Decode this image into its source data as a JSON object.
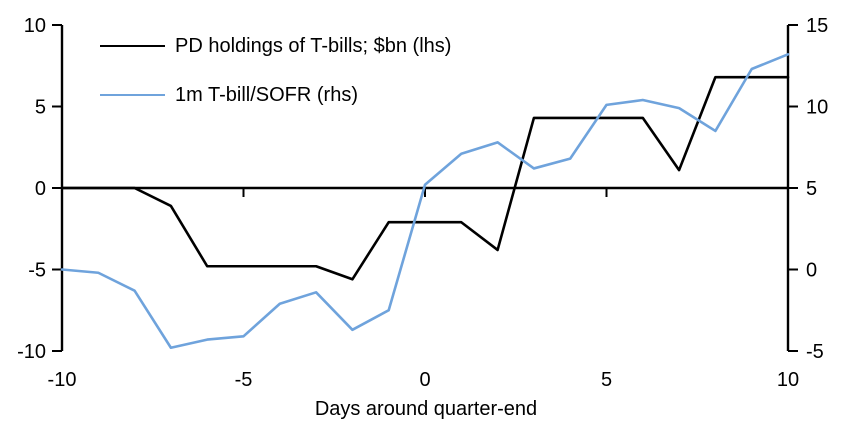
{
  "chart_data": {
    "type": "line",
    "title": "",
    "xlabel": "Days around quarter-end",
    "ylabel_left": "",
    "ylabel_right": "",
    "grid": false,
    "legend_position": "top-left",
    "x": [
      -10,
      -9,
      -8,
      -7,
      -6,
      -5,
      -4,
      -3,
      -2,
      -1,
      0,
      1,
      2,
      3,
      4,
      5,
      6,
      7,
      8,
      9,
      10
    ],
    "x_ticks": [
      -10,
      -5,
      0,
      5,
      10
    ],
    "left_axis": {
      "min": -10,
      "max": 10,
      "ticks": [
        10,
        5,
        0,
        -5,
        -10
      ]
    },
    "right_axis": {
      "min": -5,
      "max": 15,
      "ticks": [
        15,
        10,
        5,
        0,
        -5
      ]
    },
    "series": [
      {
        "name": "PD holdings of T-bills; $bn (lhs)",
        "axis": "left",
        "color": "#000000",
        "values": [
          0,
          0,
          0,
          -1.1,
          -4.8,
          -4.8,
          -4.8,
          -4.8,
          -5.6,
          -2.1,
          -2.1,
          -2.1,
          -3.8,
          4.3,
          4.3,
          4.3,
          4.3,
          1.1,
          6.8,
          6.8,
          6.8
        ]
      },
      {
        "name": "1m T-bill/SOFR (rhs)",
        "axis": "right",
        "color": "#6FA3DC",
        "values": [
          0,
          -0.2,
          -1.3,
          -4.8,
          -4.3,
          -4.1,
          -2.1,
          -1.4,
          -3.7,
          -2.5,
          5.2,
          7.1,
          7.8,
          6.2,
          6.8,
          10.1,
          10.4,
          9.9,
          8.5,
          12.3,
          13.2
        ]
      }
    ]
  }
}
